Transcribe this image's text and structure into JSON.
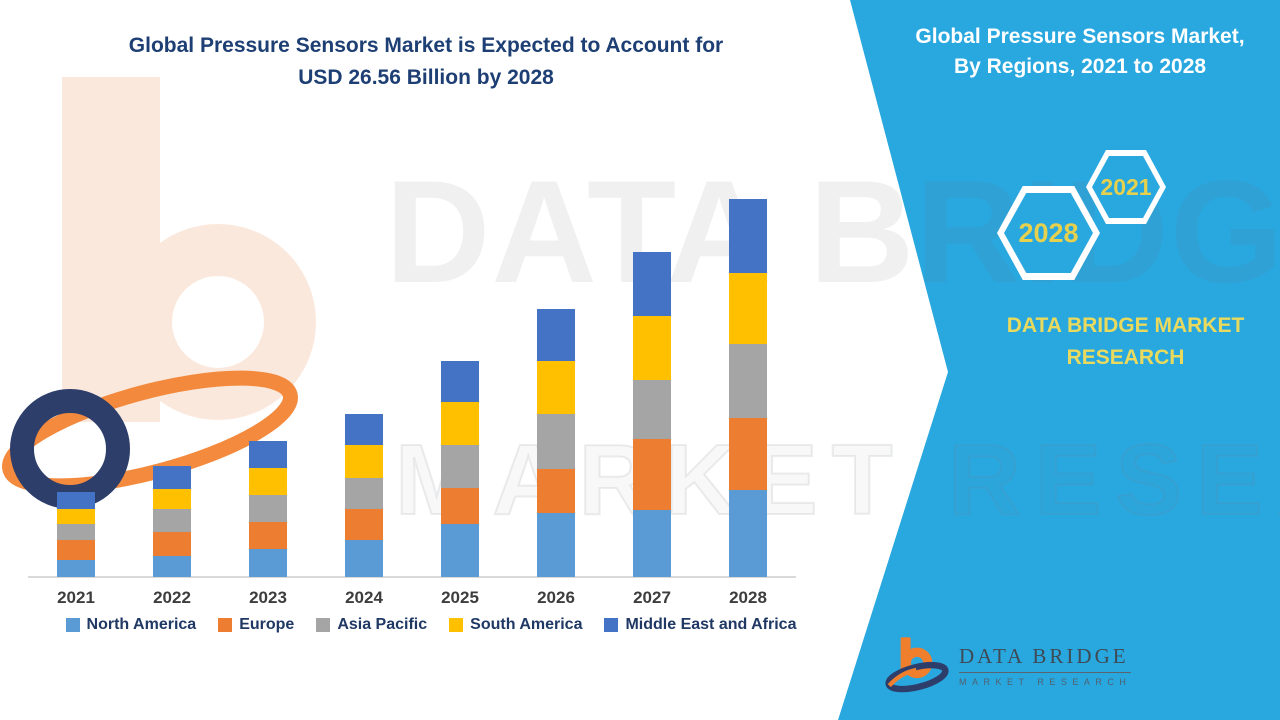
{
  "main_title": {
    "line1": "Global Pressure Sensors Market is Expected to Account for",
    "line2": "USD 26.56 Billion by 2028"
  },
  "panel": {
    "title_line1": "Global Pressure Sensors Market,",
    "title_line2": "By Regions, 2021 to 2028",
    "hexagons": [
      {
        "label": "2021"
      },
      {
        "label": "2028"
      }
    ],
    "brand_line1": "DATA BRIDGE MARKET",
    "brand_line2": "RESEARCH",
    "background_color": "#29a8e0",
    "accent_yellow": "#e6d14e"
  },
  "watermark": {
    "line1": "DATA BRIDGE",
    "line2": "MARKET RESEARCH"
  },
  "footer_logo": {
    "name": "DATA BRIDGE",
    "subtitle": "MARKET RESEARCH"
  },
  "chart_data": {
    "type": "bar",
    "stacked": true,
    "title": "Global Pressure Sensors Market, By Regions, 2021 to 2028",
    "unit": "USD Billion",
    "categories": [
      "2021",
      "2022",
      "2023",
      "2024",
      "2025",
      "2026",
      "2027",
      "2028"
    ],
    "series": [
      {
        "name": "North America",
        "color": "#5B9BD5",
        "values": [
          1.2,
          1.5,
          2.0,
          2.6,
          3.7,
          4.5,
          4.7,
          6.1
        ]
      },
      {
        "name": "Europe",
        "color": "#ED7D31",
        "values": [
          1.4,
          1.7,
          1.9,
          2.2,
          2.6,
          3.1,
          5.0,
          5.1
        ]
      },
      {
        "name": "Asia Pacific",
        "color": "#A5A5A5",
        "values": [
          1.1,
          1.6,
          1.9,
          2.2,
          3.0,
          3.9,
          4.2,
          5.2
        ]
      },
      {
        "name": "South America",
        "color": "#FFC000",
        "values": [
          1.1,
          1.4,
          1.9,
          2.3,
          3.0,
          3.7,
          4.5,
          5.0
        ]
      },
      {
        "name": "Middle East and Africa",
        "color": "#4472C4",
        "values": [
          1.2,
          1.6,
          1.9,
          2.2,
          2.9,
          3.7,
          4.5,
          5.2
        ]
      }
    ],
    "totals": [
      6.0,
      7.8,
      9.6,
      11.5,
      15.2,
      18.9,
      22.9,
      26.6
    ],
    "ylim": [
      0,
      27
    ],
    "grid": false,
    "legend_position": "bottom",
    "xlabel": "",
    "ylabel": ""
  }
}
